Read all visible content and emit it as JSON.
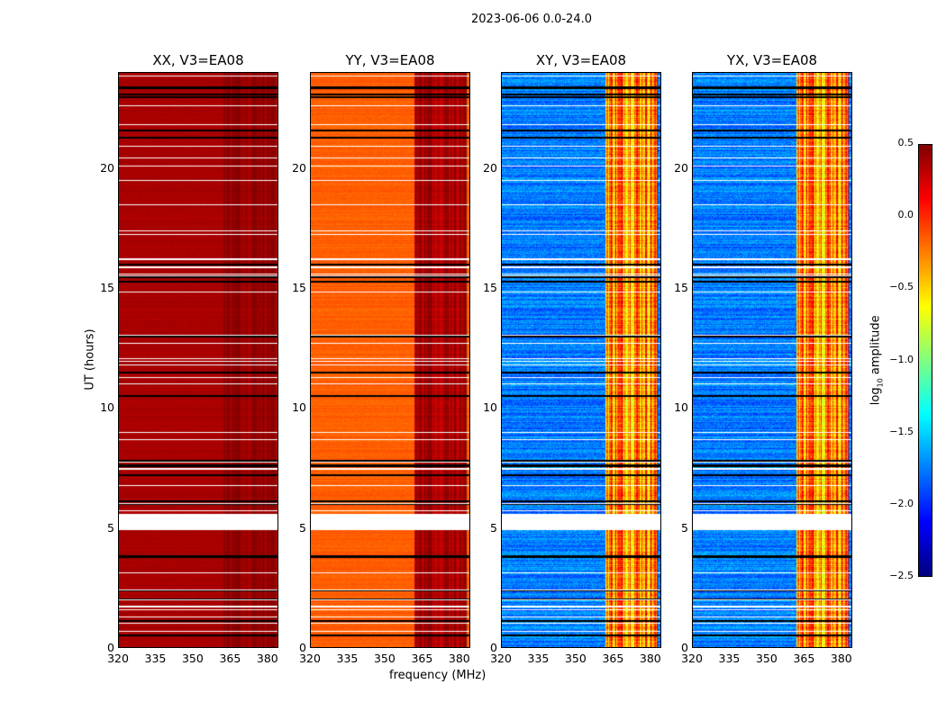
{
  "chart_data": {
    "type": "heatmap",
    "title": "2023-06-06 0.0-24.0",
    "xlabel": "frequency (MHz)",
    "ylabel": "UT (hours)",
    "xlim": [
      320,
      384.4
    ],
    "ylim": [
      0,
      24
    ],
    "xticks": [
      "320",
      "335",
      "350",
      "365",
      "380"
    ],
    "xtick_values": [
      320,
      335,
      350,
      365,
      380
    ],
    "yticks": [
      "0",
      "5",
      "10",
      "15",
      "20"
    ],
    "ytick_values": [
      0,
      5,
      10,
      15,
      20
    ],
    "colormap": "jet",
    "colorbar": {
      "label_prefix": "log",
      "label_sub": "10",
      "label_suffix": " amplitude",
      "range": [
        -2.5,
        0.5
      ],
      "ticks": [
        "0.5",
        "0.0",
        "−0.5",
        "−1.0",
        "−1.5",
        "−2.0",
        "−2.5"
      ],
      "tick_values": [
        0.5,
        0.0,
        -0.5,
        -1.0,
        -1.5,
        -2.0,
        -2.5
      ]
    },
    "flagged_gap_hours": [
      [
        4.9,
        5.6
      ]
    ],
    "flagged_black_hours": [
      0.5,
      1.1,
      2.0,
      2.4,
      3.8,
      6.0,
      6.1,
      7.2,
      7.6,
      7.8,
      10.5,
      11.5,
      13.0,
      15.3,
      15.5,
      16.0,
      21.3,
      21.6,
      23.0,
      23.1,
      23.4
    ],
    "rfi_band_mhz": [
      362,
      383
    ],
    "panels": [
      {
        "title": "XX, V3=EA08",
        "base_log_amp": 0.38,
        "band_log_amp": 0.45,
        "noise": 0.05
      },
      {
        "title": "YY, V3=EA08",
        "base_log_amp": -0.15,
        "band_log_amp": 0.4,
        "noise": 0.08
      },
      {
        "title": "XY, V3=EA08",
        "base_log_amp": -1.75,
        "band_log_amp": -0.2,
        "noise": 0.3
      },
      {
        "title": "YX, V3=EA08",
        "base_log_amp": -1.75,
        "band_log_amp": -0.2,
        "noise": 0.3
      }
    ]
  }
}
